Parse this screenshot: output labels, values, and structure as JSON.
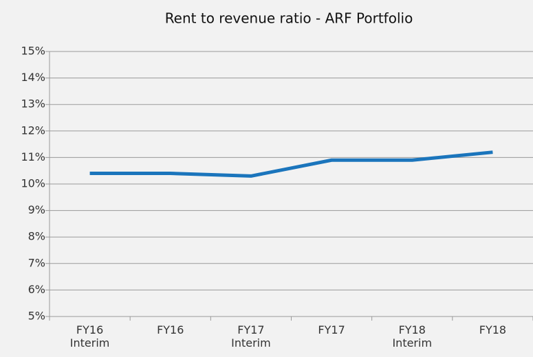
{
  "chart_data": {
    "type": "line",
    "title": "Rent to revenue ratio - ARF Portfolio",
    "categories": [
      "FY16 Interim",
      "FY16",
      "FY17 Interim",
      "FY17",
      "FY18 Interim",
      "FY18"
    ],
    "series": [
      {
        "name": "Rent to revenue ratio",
        "color": "#1b75bc",
        "values": [
          10.4,
          10.4,
          10.3,
          10.9,
          10.9,
          11.2
        ]
      }
    ],
    "ylim": [
      5,
      15
    ],
    "yticks": [
      {
        "value": 5,
        "label": "5%"
      },
      {
        "value": 6,
        "label": "6%"
      },
      {
        "value": 7,
        "label": "7%"
      },
      {
        "value": 8,
        "label": "8%"
      },
      {
        "value": 9,
        "label": "9%"
      },
      {
        "value": 10,
        "label": "10%"
      },
      {
        "value": 11,
        "label": "11%"
      },
      {
        "value": 12,
        "label": "12%"
      },
      {
        "value": 13,
        "label": "13%"
      },
      {
        "value": 14,
        "label": "14%"
      },
      {
        "value": 15,
        "label": "15%"
      }
    ],
    "grid": true
  }
}
